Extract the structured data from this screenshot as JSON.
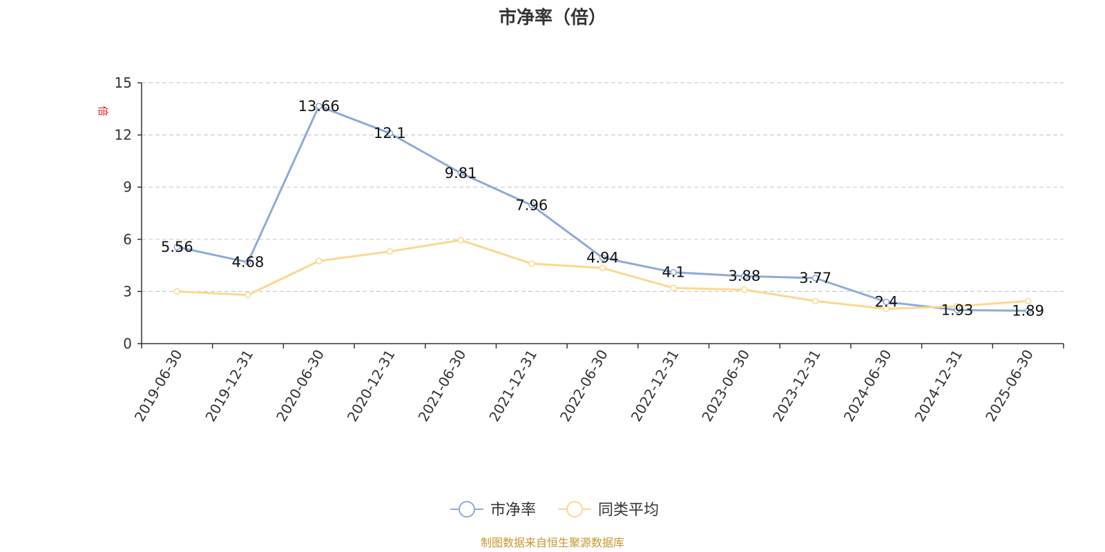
{
  "chart_data": {
    "type": "line",
    "title": "市净率（倍）",
    "ylabel": "倍",
    "ylim": [
      0,
      15
    ],
    "yticks": [
      0,
      3,
      6,
      9,
      12,
      15
    ],
    "grid": true,
    "legend_position": "bottom-center",
    "categories": [
      "2019-06-30",
      "2019-12-31",
      "2020-06-30",
      "2020-12-31",
      "2021-06-30",
      "2021-12-31",
      "2022-06-30",
      "2022-12-31",
      "2023-06-30",
      "2023-12-31",
      "2024-06-30",
      "2024-12-31",
      "2025-06-30"
    ],
    "series": [
      {
        "name": "市净率",
        "color": "#8eaad9",
        "values": [
          5.56,
          4.68,
          13.66,
          12.1,
          9.81,
          7.96,
          4.94,
          4.1,
          3.88,
          3.77,
          2.4,
          1.93,
          1.89
        ],
        "labels": [
          "5.56",
          "4.68",
          "13.66",
          "12.1",
          "9.81",
          "7.96",
          "4.94",
          "4.1",
          "3.88",
          "3.77",
          "2.4",
          "1.93",
          "1.89"
        ]
      },
      {
        "name": "同类平均",
        "color": "#fbd890",
        "values": [
          3.0,
          2.8,
          4.75,
          5.3,
          5.95,
          4.6,
          4.35,
          3.2,
          3.1,
          2.45,
          2.0,
          2.15,
          2.45
        ]
      }
    ]
  },
  "footer": {
    "source": "制图数据来自恒生聚源数据库"
  }
}
